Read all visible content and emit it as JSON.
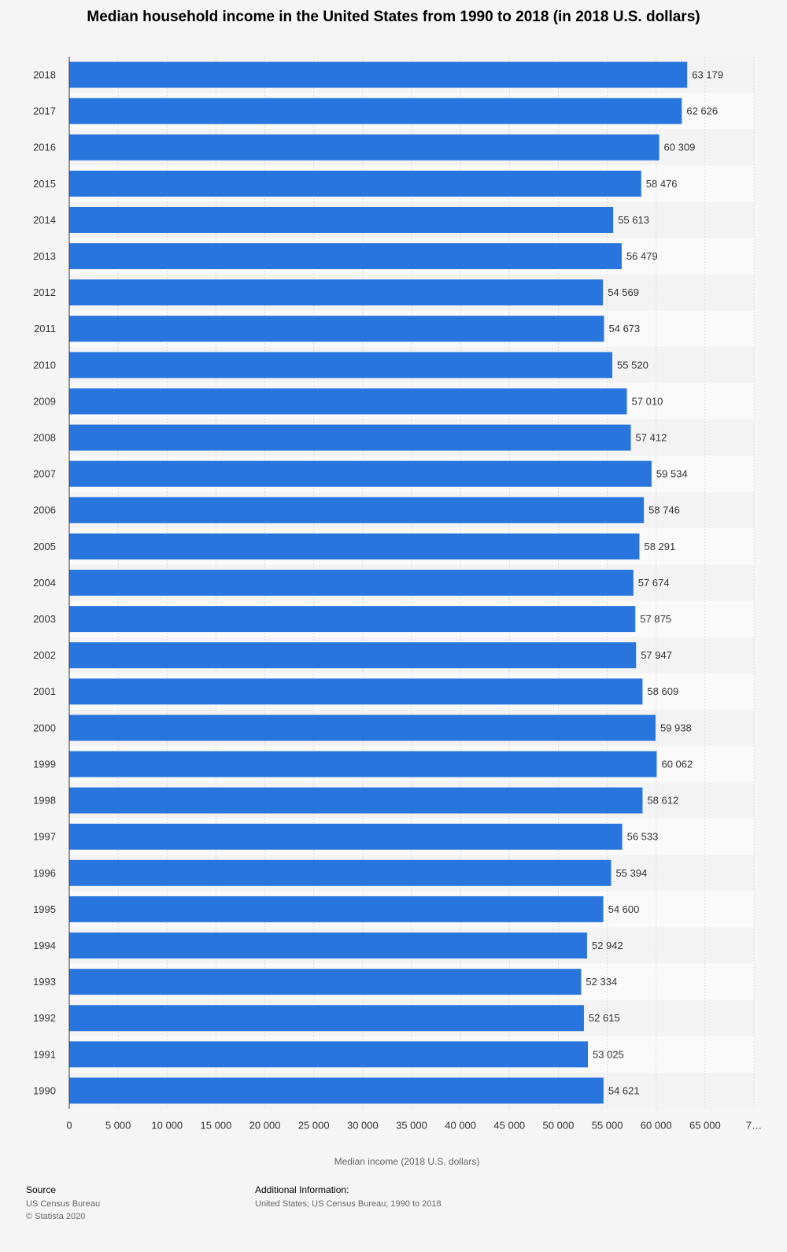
{
  "chart_data": {
    "type": "hbar",
    "title": "Median household income in the United States from 1990 to 2018 (in 2018 U.S. dollars)",
    "x_label": "Median income (2018 U.S. dollars)",
    "categories": [
      "2018",
      "2017",
      "2016",
      "2015",
      "2014",
      "2013",
      "2012",
      "2011",
      "2010",
      "2009",
      "2008",
      "2007",
      "2006",
      "2005",
      "2004",
      "2003",
      "2002",
      "2001",
      "2000",
      "1999",
      "1998",
      "1997",
      "1996",
      "1995",
      "1994",
      "1993",
      "1992",
      "1991",
      "1990"
    ],
    "values": [
      63179,
      62626,
      60309,
      58476,
      55613,
      56479,
      54569,
      54673,
      55520,
      57010,
      57412,
      59534,
      58746,
      58291,
      57674,
      57875,
      57947,
      58609,
      59938,
      60062,
      58612,
      56533,
      55394,
      54600,
      52942,
      52334,
      52615,
      53025,
      54621
    ],
    "value_labels": [
      "63 179",
      "62 626",
      "60 309",
      "58 476",
      "55 613",
      "56 479",
      "54 569",
      "54 673",
      "55 520",
      "57 010",
      "57 412",
      "59 534",
      "58 746",
      "58 291",
      "57 674",
      "57 875",
      "57 947",
      "58 609",
      "59 938",
      "60 062",
      "58 612",
      "56 533",
      "55 394",
      "54 600",
      "52 942",
      "52 334",
      "52 615",
      "53 025",
      "54 621"
    ],
    "color": "#2876dd",
    "xlim": [
      0,
      70000
    ],
    "xticks": [
      0,
      {
        "value": 5000,
        "label": "5 000"
      },
      {
        "value": 10000,
        "label": "10 000"
      },
      {
        "value": 15000,
        "label": "15 000"
      },
      {
        "value": 20000,
        "label": "20 000"
      },
      {
        "value": 25000,
        "label": "25 000"
      },
      {
        "value": 30000,
        "label": "30 000"
      },
      {
        "value": 35000,
        "label": "35 000"
      },
      {
        "value": 40000,
        "label": "40 000"
      },
      {
        "value": 45000,
        "label": "45 000"
      },
      {
        "value": 50000,
        "label": "50 000"
      },
      {
        "value": 55000,
        "label": "55 000"
      },
      {
        "value": 60000,
        "label": "60 000"
      },
      {
        "value": 65000,
        "label": "65 000"
      },
      {
        "value": 70000,
        "label": "7…"
      }
    ],
    "grid": true
  },
  "footer": {
    "source_title": "Source",
    "source_lines": [
      "US Census Bureau",
      "© Statista 2020"
    ],
    "info_title": "Additional Information:",
    "info_text": "United States; US Census Bureau; 1990 to 2018"
  }
}
